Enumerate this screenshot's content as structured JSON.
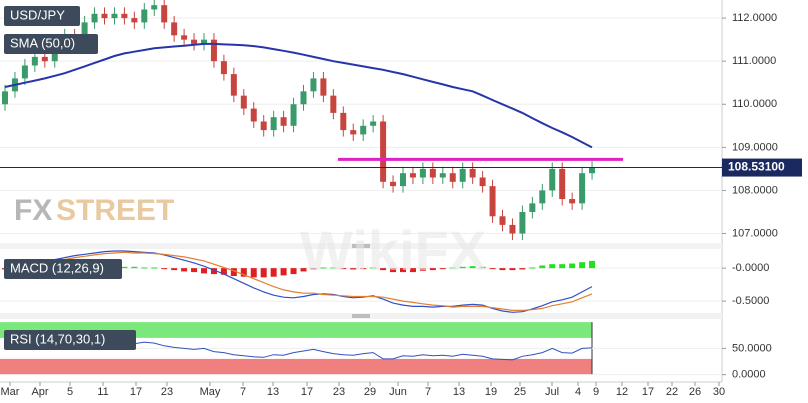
{
  "chart_data": [
    {
      "type": "candlestick",
      "title": "USD/JPY",
      "up_color": "#3a9a6a",
      "down_color": "#c8443e",
      "open": [
        110.0,
        110.3,
        110.6,
        110.9,
        111.1,
        111.0,
        111.4,
        111.6,
        111.5,
        111.9,
        112.1,
        112.0,
        112.1,
        112.0,
        111.9,
        112.2,
        112.3,
        111.9,
        111.6,
        111.5,
        111.4,
        111.5,
        111.0,
        110.7,
        110.2,
        109.9,
        109.6,
        109.4,
        109.7,
        109.5,
        110.0,
        110.3,
        110.6,
        110.2,
        109.8,
        109.4,
        109.3,
        109.5,
        109.6,
        108.2,
        108.1,
        108.4,
        108.3,
        108.5,
        108.3,
        108.4,
        108.2,
        108.5,
        108.3,
        108.1,
        107.4,
        107.2,
        107.0,
        107.5,
        107.7,
        108.0,
        108.5,
        107.8,
        107.7,
        108.4
      ],
      "high": [
        110.45,
        110.75,
        111.05,
        111.25,
        111.25,
        111.55,
        111.75,
        111.75,
        112.05,
        112.25,
        112.25,
        112.25,
        112.25,
        112.15,
        112.35,
        112.45,
        112.45,
        112.05,
        111.75,
        111.65,
        111.65,
        111.65,
        111.15,
        110.85,
        110.35,
        110.05,
        109.75,
        109.85,
        109.85,
        110.15,
        110.45,
        110.75,
        110.75,
        110.35,
        109.95,
        109.55,
        109.65,
        109.75,
        109.75,
        108.35,
        108.55,
        108.55,
        108.65,
        108.65,
        108.55,
        108.55,
        108.65,
        108.65,
        108.45,
        108.25,
        107.55,
        107.35,
        107.65,
        107.85,
        108.15,
        108.65,
        108.65,
        107.95,
        108.55,
        108.68
      ],
      "low": [
        109.85,
        110.15,
        110.45,
        110.75,
        110.85,
        110.85,
        111.25,
        111.35,
        111.35,
        111.75,
        111.85,
        111.85,
        111.85,
        111.75,
        111.75,
        112.05,
        111.75,
        111.45,
        111.35,
        111.25,
        111.25,
        110.85,
        110.55,
        110.05,
        109.75,
        109.45,
        109.25,
        109.25,
        109.35,
        109.35,
        109.85,
        110.15,
        110.05,
        109.65,
        109.25,
        109.15,
        109.15,
        109.35,
        108.05,
        107.95,
        107.95,
        108.15,
        108.15,
        108.15,
        108.15,
        108.05,
        108.05,
        108.15,
        107.95,
        107.25,
        107.05,
        106.85,
        106.85,
        107.35,
        107.55,
        107.85,
        107.65,
        107.55,
        107.55,
        108.25
      ],
      "close": [
        110.3,
        110.6,
        110.9,
        111.1,
        111.0,
        111.4,
        111.6,
        111.5,
        111.9,
        112.1,
        112.0,
        112.1,
        112.0,
        111.9,
        112.2,
        112.3,
        111.9,
        111.6,
        111.5,
        111.4,
        111.5,
        111.0,
        110.7,
        110.2,
        109.9,
        109.6,
        109.4,
        109.7,
        109.5,
        110.0,
        110.3,
        110.6,
        110.2,
        109.8,
        109.4,
        109.3,
        109.5,
        109.6,
        108.2,
        108.1,
        108.4,
        108.3,
        108.5,
        108.3,
        108.4,
        108.2,
        108.5,
        108.3,
        108.1,
        107.4,
        107.2,
        107.0,
        107.5,
        107.7,
        108.0,
        108.5,
        107.8,
        107.7,
        108.4,
        108.53
      ],
      "series": [
        {
          "name": "SMA (50,0)",
          "color": "#2635a8",
          "values": [
            110.4,
            110.45,
            110.5,
            110.55,
            110.6,
            110.66,
            110.72,
            110.8,
            110.88,
            110.96,
            111.04,
            111.12,
            111.18,
            111.22,
            111.26,
            111.3,
            111.32,
            111.34,
            111.36,
            111.38,
            111.4,
            111.4,
            111.39,
            111.38,
            111.37,
            111.35,
            111.32,
            111.28,
            111.24,
            111.2,
            111.15,
            111.1,
            111.05,
            111.0,
            110.96,
            110.92,
            110.88,
            110.84,
            110.8,
            110.75,
            110.7,
            110.64,
            110.58,
            110.52,
            110.46,
            110.4,
            110.35,
            110.3,
            110.2,
            110.1,
            110.0,
            109.9,
            109.8,
            109.68,
            109.56,
            109.45,
            109.35,
            109.24,
            109.12,
            109.0
          ]
        }
      ],
      "resistance": {
        "value": 108.72,
        "color": "#e020c0"
      },
      "last_price": {
        "value": 108.531,
        "label": "108.53100"
      },
      "ylim": [
        106.78,
        112.42
      ],
      "yticks": [
        {
          "value": 107,
          "label": "107.0000"
        },
        {
          "value": 108,
          "label": "108.0000"
        },
        {
          "value": 109,
          "label": "109.0000"
        },
        {
          "value": 110,
          "label": "110.0000"
        },
        {
          "value": 111,
          "label": "111.0000"
        },
        {
          "value": 112,
          "label": "112.0000"
        }
      ],
      "x_labels": [
        "Mar",
        "Apr",
        "5",
        "11",
        "17",
        "23",
        "May",
        "7",
        "13",
        "17",
        "23",
        "29",
        "Jun",
        "7",
        "13",
        "19",
        "25",
        "Jul",
        "4",
        "9",
        "12",
        "17",
        "22",
        "26",
        "30"
      ],
      "watermark": {
        "left": "FX",
        "right": "STREET",
        "faint": "WikiFX"
      }
    },
    {
      "type": "macd",
      "title": "MACD (12,26,9)",
      "macd": {
        "color": "#3050c8",
        "values": [
          -0.05,
          -0.02,
          0.02,
          0.06,
          0.1,
          0.13,
          0.16,
          0.19,
          0.21,
          0.23,
          0.25,
          0.26,
          0.26,
          0.25,
          0.24,
          0.23,
          0.2,
          0.16,
          0.12,
          0.08,
          0.03,
          -0.03,
          -0.09,
          -0.16,
          -0.23,
          -0.3,
          -0.36,
          -0.41,
          -0.44,
          -0.45,
          -0.43,
          -0.4,
          -0.39,
          -0.4,
          -0.43,
          -0.45,
          -0.44,
          -0.42,
          -0.47,
          -0.53,
          -0.56,
          -0.58,
          -0.58,
          -0.59,
          -0.58,
          -0.58,
          -0.56,
          -0.55,
          -0.56,
          -0.61,
          -0.65,
          -0.67,
          -0.66,
          -0.62,
          -0.57,
          -0.51,
          -0.48,
          -0.44,
          -0.36,
          -0.28
        ]
      },
      "signal": {
        "color": "#e08030",
        "values": [
          -0.03,
          -0.01,
          0.01,
          0.04,
          0.07,
          0.1,
          0.13,
          0.16,
          0.18,
          0.2,
          0.22,
          0.23,
          0.24,
          0.23,
          0.23,
          0.22,
          0.21,
          0.19,
          0.17,
          0.14,
          0.11,
          0.06,
          0.01,
          -0.04,
          -0.1,
          -0.16,
          -0.22,
          -0.28,
          -0.33,
          -0.36,
          -0.38,
          -0.38,
          -0.4,
          -0.41,
          -0.42,
          -0.43,
          -0.43,
          -0.43,
          -0.44,
          -0.47,
          -0.5,
          -0.52,
          -0.54,
          -0.56,
          -0.57,
          -0.59,
          -0.58,
          -0.58,
          -0.58,
          -0.6,
          -0.62,
          -0.64,
          -0.64,
          -0.63,
          -0.61,
          -0.57,
          -0.54,
          -0.51,
          -0.45,
          -0.39
        ]
      },
      "histogram": {
        "up_color": "#22e022",
        "down_color": "#e02020",
        "values": [
          -0.02,
          -0.01,
          0.01,
          0.02,
          0.03,
          0.03,
          0.03,
          0.03,
          0.03,
          0.03,
          0.03,
          0.03,
          0.02,
          0.02,
          0.01,
          0.01,
          -0.01,
          -0.03,
          -0.05,
          -0.06,
          -0.08,
          -0.09,
          -0.1,
          -0.12,
          -0.13,
          -0.14,
          -0.14,
          -0.13,
          -0.11,
          -0.09,
          -0.05,
          -0.02,
          0.01,
          0.01,
          -0.01,
          -0.02,
          -0.01,
          0.01,
          -0.03,
          -0.06,
          -0.06,
          -0.06,
          -0.04,
          -0.03,
          -0.01,
          0.01,
          0.02,
          0.03,
          0.02,
          -0.01,
          -0.03,
          -0.03,
          -0.02,
          0.01,
          0.04,
          0.06,
          0.06,
          0.07,
          0.09,
          0.11
        ]
      },
      "ylim": [
        -0.68,
        0.29
      ],
      "yticks": [
        {
          "value": 0,
          "label": "-0.0000"
        },
        {
          "value": -0.5,
          "label": "-0.5000"
        }
      ]
    },
    {
      "type": "rsi",
      "title": "RSI (14,70,30,1)",
      "color": "#3050c0",
      "overbought": 70,
      "oversold": 30,
      "values": [
        55,
        58,
        60,
        62,
        60,
        63,
        62,
        60,
        62,
        63,
        61,
        62,
        60,
        59,
        62,
        60,
        55,
        52,
        50,
        48,
        50,
        44,
        42,
        38,
        36,
        34,
        33,
        38,
        37,
        42,
        45,
        48,
        44,
        40,
        38,
        37,
        40,
        42,
        30,
        30,
        36,
        35,
        38,
        36,
        37,
        35,
        39,
        37,
        35,
        30,
        29,
        28,
        35,
        38,
        42,
        50,
        42,
        41,
        50,
        51
      ],
      "ylim": [
        -14,
        106
      ],
      "yticks": [
        {
          "value": 50,
          "label": "50.0000"
        },
        {
          "value": 0,
          "label": "0.0000"
        }
      ]
    }
  ]
}
